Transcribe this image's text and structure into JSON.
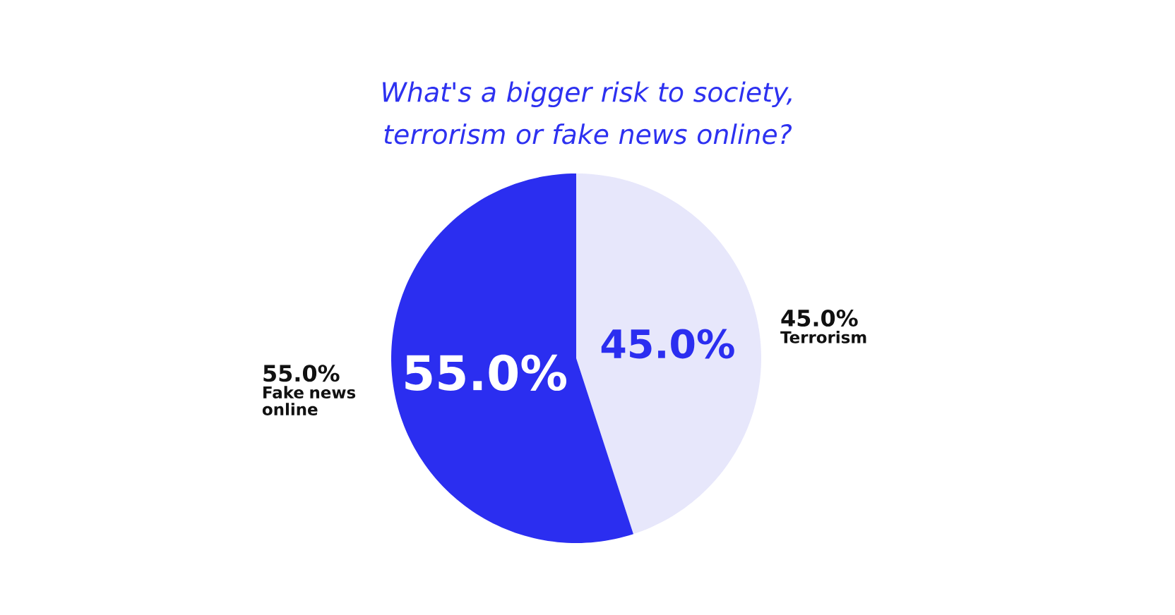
{
  "chart_data": {
    "type": "pie",
    "title": "What's a bigger risk to society, terrorism or fake news online?",
    "categories": [
      "Terrorism",
      "Fake news online"
    ],
    "values": [
      45.0,
      55.0
    ],
    "colors": [
      "#e7e7fb",
      "#2b2ef0"
    ],
    "value_labels": [
      "45.0%",
      "55.0%"
    ]
  }
}
